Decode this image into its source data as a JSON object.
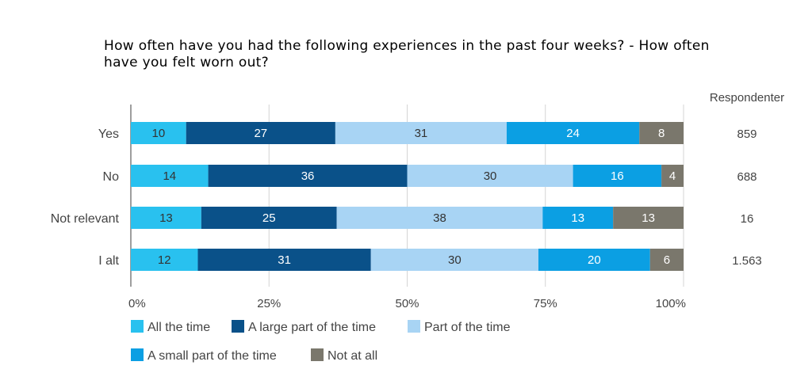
{
  "chart_data": {
    "type": "bar",
    "orientation": "horizontal",
    "stacked": true,
    "percent_stacked": true,
    "title_lines": [
      "How often have you had the following experiences in the past four weeks? - How often",
      "have you felt worn out?"
    ],
    "categories": [
      "Yes",
      "No",
      "Not relevant",
      "I alt"
    ],
    "series": [
      {
        "name": "All the time",
        "color": "#29c1ef",
        "label_color": "#333333",
        "values": [
          10,
          14,
          13,
          12
        ]
      },
      {
        "name": "A large part of the time",
        "color": "#0a5189",
        "label_color": "#ffffff",
        "values": [
          27,
          36,
          25,
          31
        ]
      },
      {
        "name": "Part of the time",
        "color": "#a8d4f4",
        "label_color": "#333333",
        "values": [
          31,
          30,
          38,
          30
        ]
      },
      {
        "name": "A small part of the time",
        "color": "#0b9fe3",
        "label_color": "#ffffff",
        "values": [
          24,
          16,
          13,
          20
        ]
      },
      {
        "name": "Not at all",
        "color": "#7a776c",
        "label_color": "#ffffff",
        "values": [
          8,
          4,
          13,
          6
        ]
      }
    ],
    "xlim": [
      0,
      100
    ],
    "x_ticks": [
      "0%",
      "25%",
      "50%",
      "75%",
      "100%"
    ],
    "respondents_header": "Respondenter",
    "respondents": [
      "859",
      "688",
      "16",
      "1.563"
    ],
    "legend_position": "bottom-left",
    "grid": true
  }
}
